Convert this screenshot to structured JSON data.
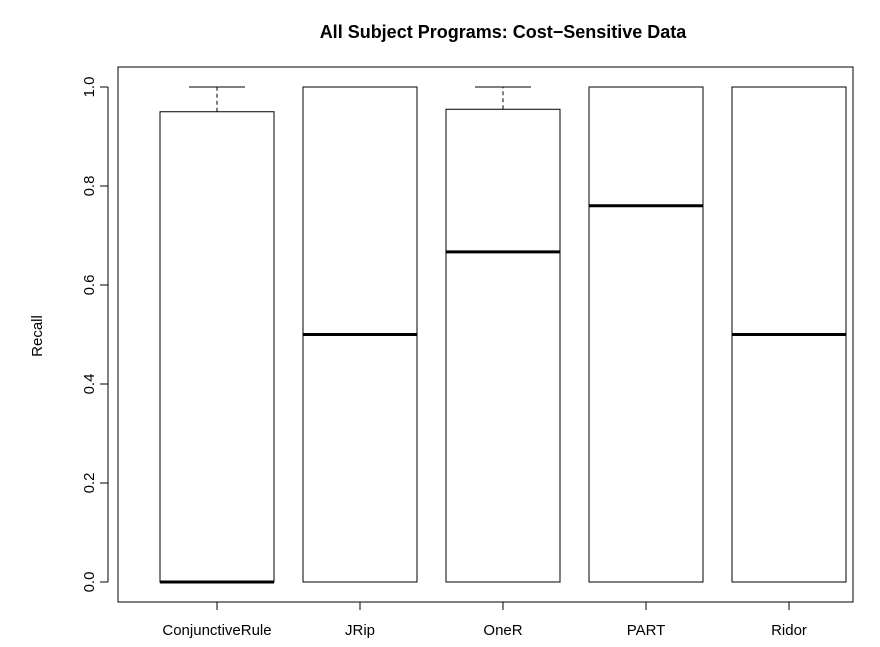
{
  "chart_data": {
    "type": "boxplot",
    "title": "All Subject Programs: Cost−Sensitive Data",
    "xlabel": "",
    "ylabel": "Recall",
    "ylim": [
      0,
      1.0
    ],
    "yticks": [
      "0.0",
      "0.2",
      "0.4",
      "0.6",
      "0.8",
      "1.0"
    ],
    "yticks_values": [
      0,
      0.2,
      0.4,
      0.6,
      0.8,
      1.0
    ],
    "categories": [
      "ConjunctiveRule",
      "JRip",
      "OneR",
      "PART",
      "Ridor"
    ],
    "boxes": [
      {
        "min": 0.0,
        "q1": 0.0,
        "median": 0.0,
        "q3": 0.95,
        "max": 1.0
      },
      {
        "min": 0.0,
        "q1": 0.0,
        "median": 0.5,
        "q3": 1.0,
        "max": 1.0
      },
      {
        "min": 0.0,
        "q1": 0.0,
        "median": 0.667,
        "q3": 0.955,
        "max": 1.0
      },
      {
        "min": 0.0,
        "q1": 0.0,
        "median": 0.76,
        "q3": 1.0,
        "max": 1.0
      },
      {
        "min": 0.0,
        "q1": 0.0,
        "median": 0.5,
        "q3": 1.0,
        "max": 1.0
      }
    ],
    "legend": "none",
    "grid": false
  }
}
